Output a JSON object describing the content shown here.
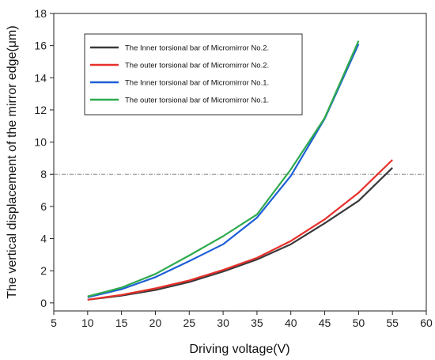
{
  "chart_data": {
    "type": "line",
    "xlabel": "Driving voltage(V)",
    "ylabel": "The vertical displacement of the mirror edge(μm)",
    "xlim": [
      5,
      60
    ],
    "ylim": [
      -0.5,
      18
    ],
    "xticks": [
      5,
      10,
      15,
      20,
      25,
      30,
      35,
      40,
      45,
      50,
      55,
      60
    ],
    "yticks": [
      0,
      2,
      4,
      6,
      8,
      10,
      12,
      14,
      16,
      18
    ],
    "reference_line": {
      "y": 8,
      "style": "dash-dot",
      "color": "#888888"
    },
    "legend_position": "top-left",
    "grid": false,
    "series": [
      {
        "name": "The Inner torsional bar of Micromirror No.2.",
        "color": "#3a3a3a",
        "x": [
          10,
          15,
          20,
          25,
          30,
          35,
          40,
          45,
          50,
          55
        ],
        "y": [
          0.2,
          0.45,
          0.8,
          1.3,
          1.95,
          2.7,
          3.65,
          4.95,
          6.35,
          8.4
        ]
      },
      {
        "name": "The outer torsional bar of Micromirror No.2.",
        "color": "#e8302a",
        "x": [
          10,
          15,
          20,
          25,
          30,
          35,
          40,
          45,
          50,
          55
        ],
        "y": [
          0.2,
          0.5,
          0.9,
          1.4,
          2.05,
          2.8,
          3.85,
          5.2,
          6.85,
          8.9
        ]
      },
      {
        "name": "The Inner torsional bar of Micromirror No.1.",
        "color": "#1f5fd6",
        "x": [
          10,
          15,
          20,
          25,
          30,
          35,
          40,
          45,
          50
        ],
        "y": [
          0.35,
          0.85,
          1.6,
          2.6,
          3.65,
          5.3,
          7.9,
          11.45,
          16.1
        ]
      },
      {
        "name": "The outer torsional bar of Micromirror No.1.",
        "color": "#2eaa4e",
        "x": [
          10,
          15,
          20,
          25,
          30,
          35,
          40,
          45,
          50
        ],
        "y": [
          0.4,
          0.95,
          1.8,
          2.95,
          4.15,
          5.5,
          8.3,
          11.5,
          16.3
        ]
      }
    ]
  }
}
